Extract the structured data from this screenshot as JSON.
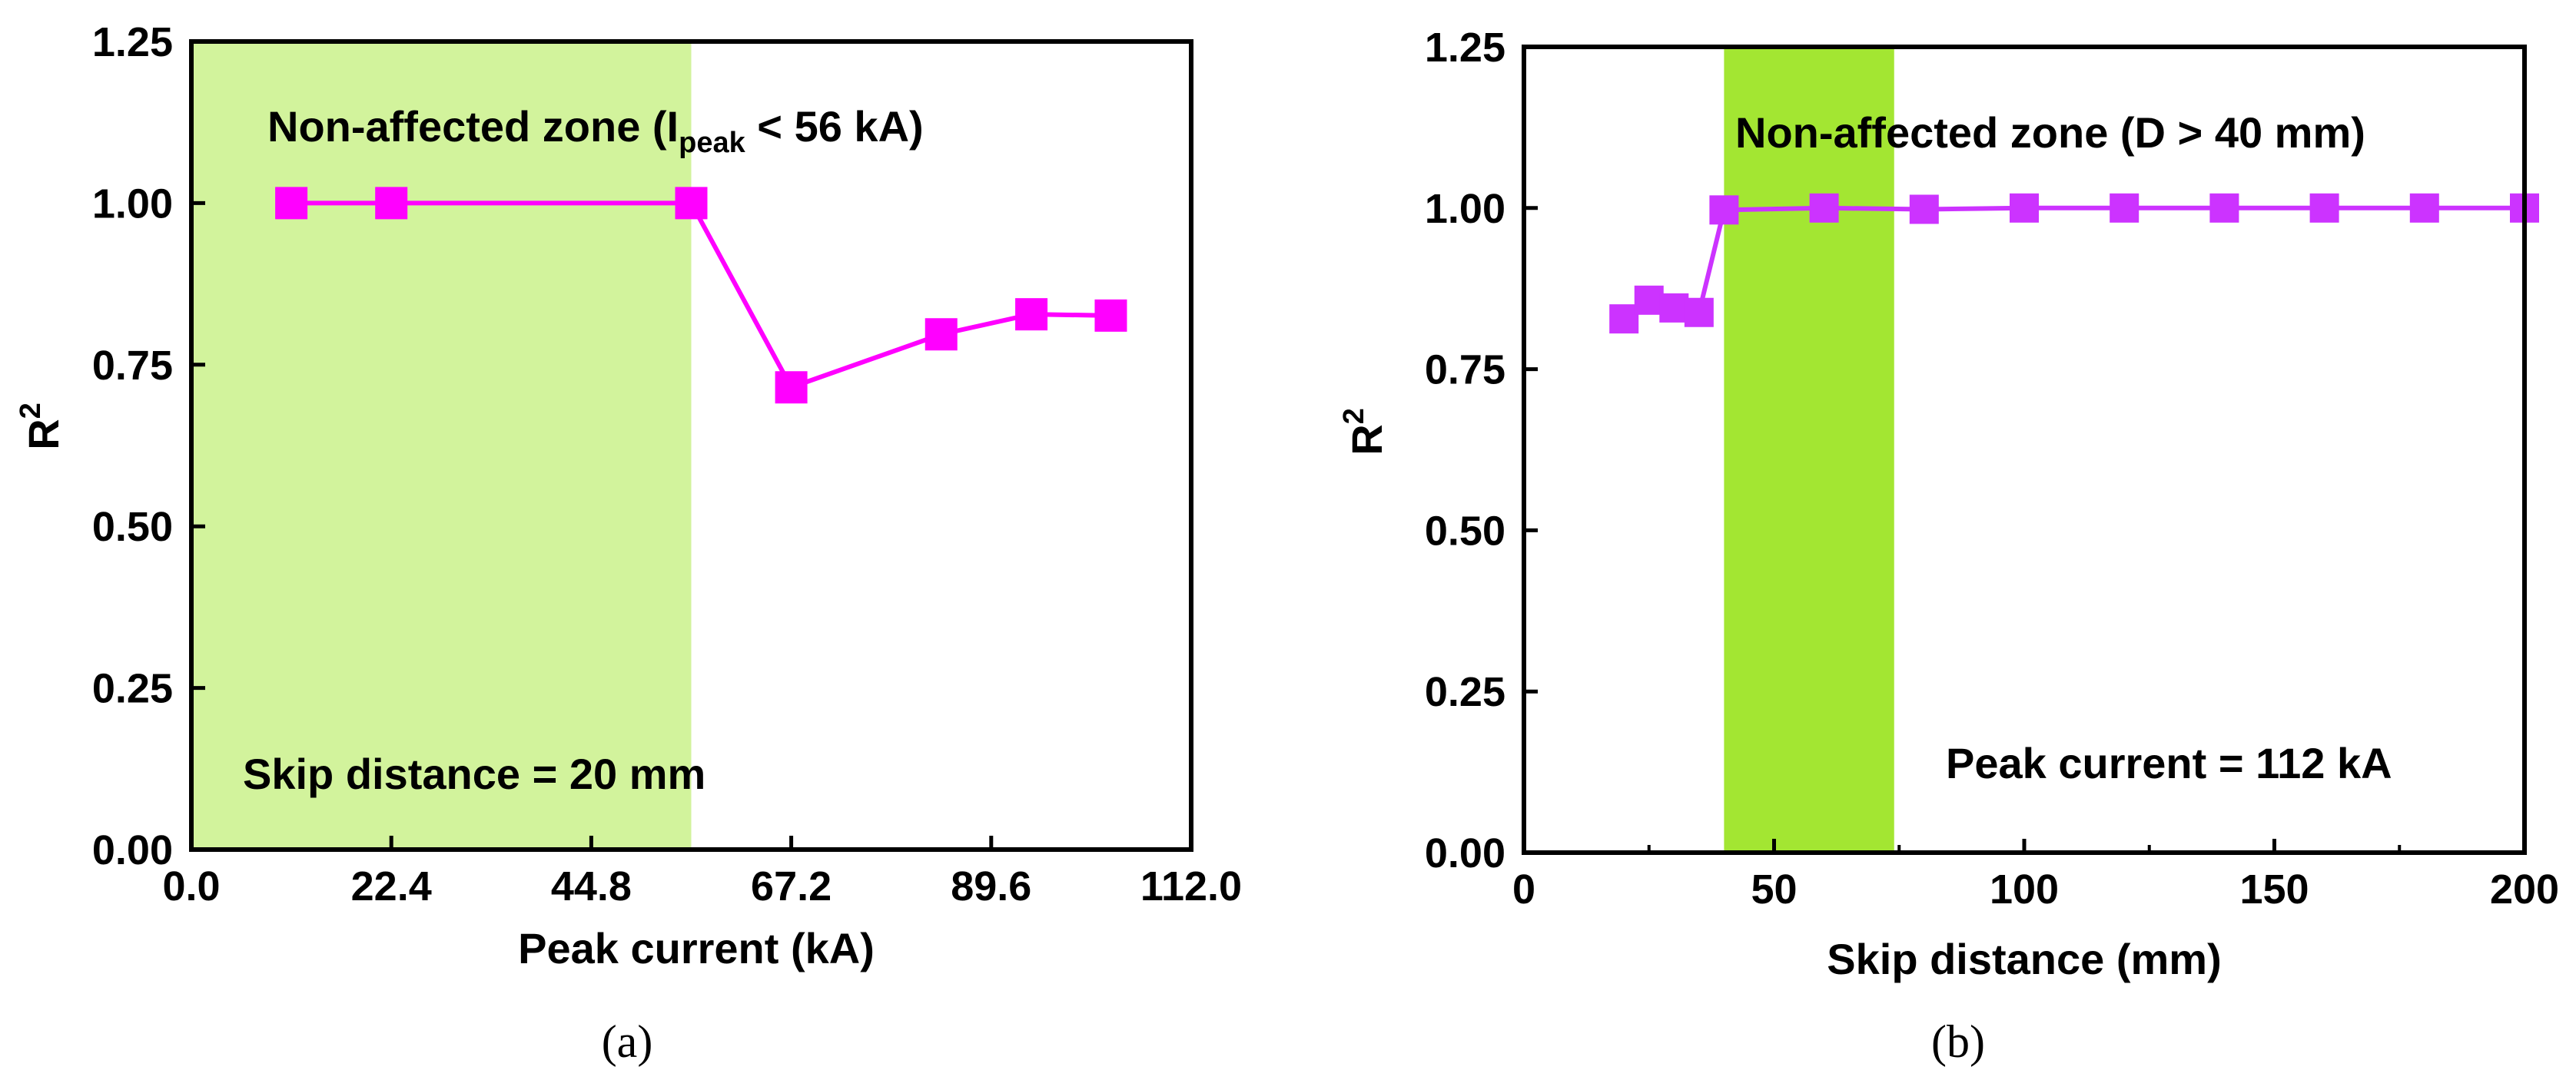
{
  "chart_data": [
    {
      "id": "a",
      "type": "line",
      "panel_label": "(a)",
      "xlabel": "Peak current (kA)",
      "ylabel": "R",
      "ylabel_sup": "2",
      "xlim": [
        0,
        112
      ],
      "ylim": [
        0,
        1.25
      ],
      "xticks": [
        0,
        22.4,
        44.8,
        67.2,
        89.6,
        112
      ],
      "xtick_labels": [
        "0.0",
        "22.4",
        "44.8",
        "67.2",
        "89.6",
        "112.0"
      ],
      "yticks": [
        0,
        0.25,
        0.5,
        0.75,
        1.0,
        1.25
      ],
      "ytick_labels": [
        "0.00",
        "0.25",
        "0.50",
        "0.75",
        "1.00",
        "1.25"
      ],
      "shaded_region": {
        "x0": 0,
        "x1": 56,
        "color": "#d2f39c"
      },
      "series": [
        {
          "name": "R2",
          "color": "#ff00ff",
          "marker": "square",
          "x": [
            11.2,
            22.4,
            56,
            67.2,
            84,
            94.1,
            103
          ],
          "y": [
            1.0,
            1.0,
            1.0,
            0.715,
            0.797,
            0.828,
            0.826
          ]
        }
      ],
      "annotations": {
        "zone_prefix": "Non-affected zone (I",
        "zone_sub": "peak",
        "zone_suffix": " < 56 kA)",
        "condition": "Skip distance = 20 mm"
      }
    },
    {
      "id": "b",
      "type": "line",
      "panel_label": "(b)",
      "xlabel": "Skip distance (mm)",
      "ylabel": "R",
      "ylabel_sup": "2",
      "xlim": [
        0,
        200
      ],
      "ylim": [
        0,
        1.25
      ],
      "xticks": [
        0,
        50,
        100,
        150,
        200
      ],
      "xtick_labels": [
        "0",
        "50",
        "100",
        "150",
        "200"
      ],
      "yticks": [
        0,
        0.25,
        0.5,
        0.75,
        1.0,
        1.25
      ],
      "ytick_labels": [
        "0.00",
        "0.25",
        "0.50",
        "0.75",
        "1.00",
        "1.25"
      ],
      "shaded_region": {
        "x0": 40,
        "x1": 74,
        "color": "#a3e632"
      },
      "series": [
        {
          "name": "R2",
          "color": "#cc33ff",
          "marker": "square",
          "x": [
            20,
            25,
            30,
            35,
            40,
            60,
            80,
            100,
            120,
            140,
            160,
            180,
            200
          ],
          "y": [
            0.828,
            0.857,
            0.845,
            0.838,
            0.997,
            1.0,
            0.998,
            1.0,
            1.0,
            1.0,
            1.0,
            1.0,
            1.0
          ]
        }
      ],
      "annotations": {
        "zone": "Non-affected zone (D > 40 mm)",
        "condition": "Peak current = 112 kA"
      }
    }
  ]
}
